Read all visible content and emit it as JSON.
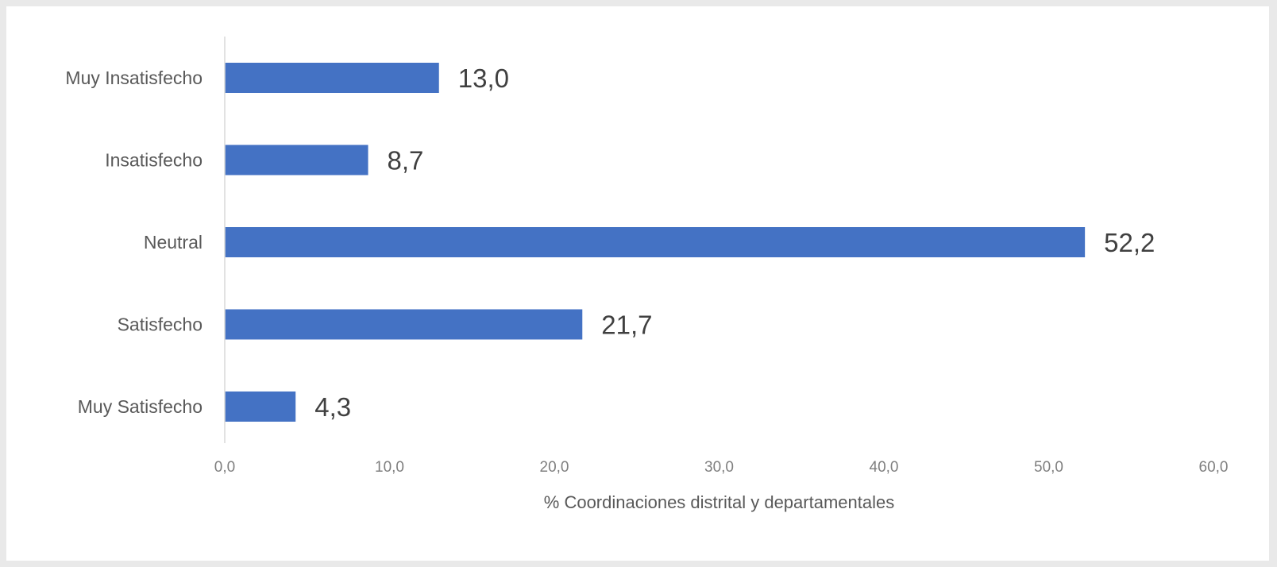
{
  "chart_data": {
    "type": "bar",
    "orientation": "horizontal",
    "categories": [
      "Muy Insatisfecho",
      "Insatisfecho",
      "Neutral",
      "Satisfecho",
      "Muy Satisfecho"
    ],
    "values": [
      13.0,
      8.7,
      52.2,
      21.7,
      4.3
    ],
    "value_labels": [
      "13,0",
      "8,7",
      "52,2",
      "21,7",
      "4,3"
    ],
    "xlabel": "% Coordinaciones distrital y departamentales",
    "ylabel": "",
    "xlim": [
      0,
      60
    ],
    "ticks": [
      0,
      10,
      20,
      30,
      40,
      50,
      60
    ],
    "tick_labels": [
      "0,0",
      "10,0",
      "20,0",
      "30,0",
      "40,0",
      "50,0",
      "60,0"
    ],
    "grid": false,
    "legend": "none",
    "bar_color": "#4472c4",
    "axis_color": "#d9d9d9"
  }
}
